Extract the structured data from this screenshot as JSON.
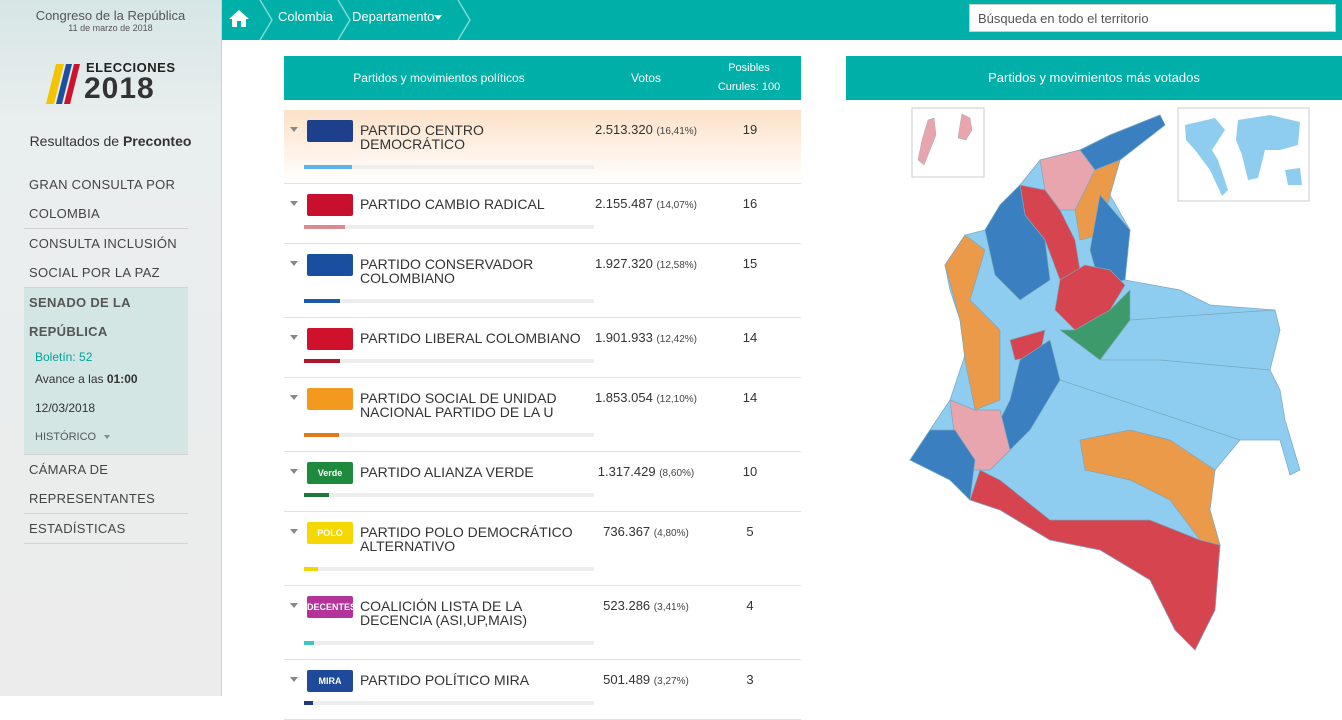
{
  "sidebar": {
    "header": {
      "title": "Congreso de la República",
      "date": "11 de marzo de 2018"
    },
    "logo": {
      "line1": "ELECCIONES",
      "line2": "2018"
    },
    "results": {
      "prefix": "Resultados de",
      "bold": "Preconteo"
    },
    "nav": [
      {
        "label": "GRAN CONSULTA POR COLOMBIA"
      },
      {
        "label": "CONSULTA INCLUSIÓN SOCIAL POR LA PAZ"
      },
      {
        "label": "SENADO DE LA REPÚBLICA",
        "active": true,
        "details": {
          "bulletin": "Boletín: 52",
          "progress_prefix": "Avance a las",
          "progress_time": "01:00",
          "date": "12/03/2018",
          "history": "HISTÓRICO"
        }
      },
      {
        "label": "CÁMARA DE REPRESENTANTES"
      },
      {
        "label": "ESTADÍSTICAS"
      }
    ]
  },
  "topbar": {
    "breadcrumbs": [
      "Colombia",
      "Departamento"
    ],
    "search_placeholder": "Búsqueda en todo el territorio"
  },
  "table": {
    "headers": {
      "party": "Partidos y movimientos políticos",
      "votes": "Votos",
      "seats_line1": "Posibles",
      "seats_line2": "Curules: 100"
    },
    "rows": [
      {
        "name": "PARTIDO CENTRO DEMOCRÁTICO",
        "votes": "2.513.320",
        "percent": 16.41,
        "percent_label": "(16,41%)",
        "seats": 19,
        "color": "#5bb4e8",
        "logo_color": "#1d3f8c",
        "highlight": true
      },
      {
        "name": "PARTIDO CAMBIO RADICAL",
        "votes": "2.155.487",
        "percent": 14.07,
        "percent_label": "(14,07%)",
        "seats": 16,
        "color": "#d98a92",
        "logo_color": "#c8102e"
      },
      {
        "name": "PARTIDO CONSERVADOR COLOMBIANO",
        "votes": "1.927.320",
        "percent": 12.58,
        "percent_label": "(12,58%)",
        "seats": 15,
        "color": "#1e5aa8",
        "logo_color": "#1a4fa0"
      },
      {
        "name": "PARTIDO LIBERAL COLOMBIANO",
        "votes": "1.901.933",
        "percent": 12.42,
        "percent_label": "(12,42%)",
        "seats": 14,
        "color": "#b0162a",
        "logo_color": "#d0112b"
      },
      {
        "name": "PARTIDO SOCIAL DE UNIDAD NACIONAL PARTIDO DE LA U",
        "votes": "1.853.054",
        "percent": 12.1,
        "percent_label": "(12,10%)",
        "seats": 14,
        "color": "#e07a1c",
        "logo_color": "#f39a1e"
      },
      {
        "name": "PARTIDO ALIANZA VERDE",
        "votes": "1.317.429",
        "percent": 8.6,
        "percent_label": "(8,60%)",
        "seats": 10,
        "color": "#1e7a3a",
        "logo_color": "#1e8a3e",
        "logo_text": "Verde"
      },
      {
        "name": "PARTIDO POLO DEMOCRÁTICO ALTERNATIVO",
        "votes": "736.367",
        "percent": 4.8,
        "percent_label": "(4,80%)",
        "seats": 5,
        "color": "#f2d600",
        "logo_color": "#f5d800",
        "logo_text": "POLO"
      },
      {
        "name": "COALICIÓN LISTA DE LA DECENCIA (ASI,UP,MAIS)",
        "votes": "523.286",
        "percent": 3.41,
        "percent_label": "(3,41%)",
        "seats": 4,
        "color": "#3cc6c4",
        "logo_color": "#b3339a",
        "logo_text": "DECENTES"
      },
      {
        "name": "PARTIDO POLÍTICO MIRA",
        "votes": "501.489",
        "percent": 3.27,
        "percent_label": "(3,27%)",
        "seats": 3,
        "color": "#1e3a7a",
        "logo_color": "#1f4a9a",
        "logo_text": "MIRA"
      }
    ]
  },
  "map": {
    "title": "Partidos y movimientos más votados"
  }
}
